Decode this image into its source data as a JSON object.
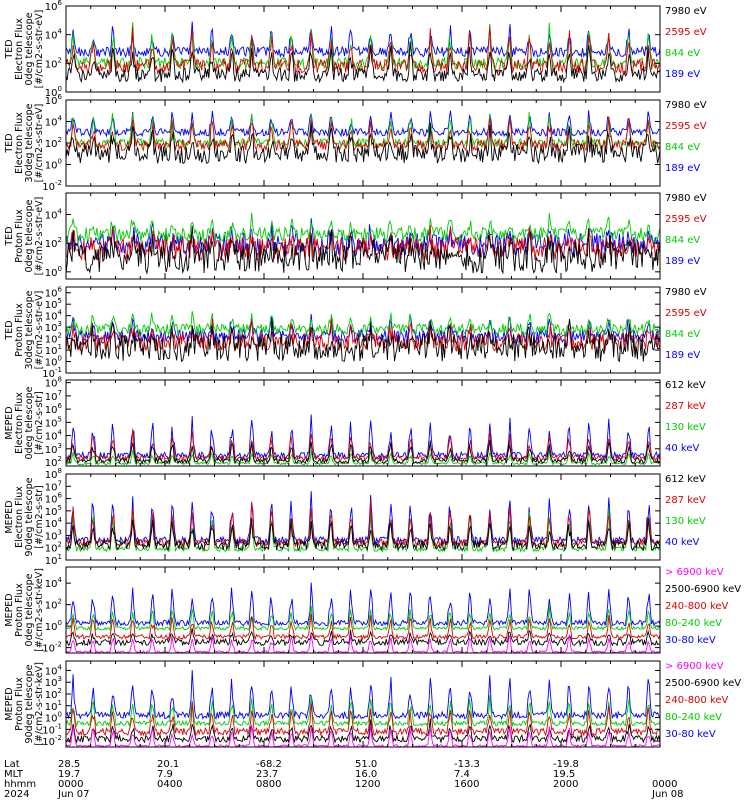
{
  "chart_data": [
    {
      "type": "line",
      "ylabel_lines": [
        "TED",
        "Electron Flux",
        "0deg telescope",
        "[#/cm2-s-str-eV]"
      ],
      "yticks": [
        "10^0",
        "10^2",
        "10^4",
        "10^6"
      ],
      "log_range": [
        0,
        6
      ],
      "series": [
        {
          "name": "7980 eV",
          "color": "#000000",
          "base": 1.2,
          "peak": 1.8,
          "noise": 0.5
        },
        {
          "name": "2595 eV",
          "color": "#dd0000",
          "base": 1.8,
          "peak": 2.0,
          "noise": 0.5
        },
        {
          "name": "844 eV",
          "color": "#00cc00",
          "base": 2.0,
          "peak": 2.2,
          "noise": 0.4
        },
        {
          "name": "189 eV",
          "color": "#0000ff",
          "base": 2.8,
          "peak": 1.6,
          "noise": 0.35
        }
      ]
    },
    {
      "type": "line",
      "ylabel_lines": [
        "TED",
        "Electron Flux",
        "30deg telescope",
        "[#/cm2-s-str-eV]"
      ],
      "yticks": [
        "10^-2",
        "10^0",
        "10^2",
        "10^4",
        "10^6"
      ],
      "log_range": [
        -2,
        6
      ],
      "series": [
        {
          "name": "7980 eV",
          "color": "#000000",
          "base": 1.0,
          "peak": 2.0,
          "noise": 0.9
        },
        {
          "name": "2595 eV",
          "color": "#dd0000",
          "base": 1.8,
          "peak": 2.2,
          "noise": 0.5
        },
        {
          "name": "844 eV",
          "color": "#00cc00",
          "base": 2.0,
          "peak": 2.6,
          "noise": 0.4
        },
        {
          "name": "189 eV",
          "color": "#0000ff",
          "base": 3.0,
          "peak": 1.8,
          "noise": 0.35
        }
      ]
    },
    {
      "type": "line",
      "ylabel_lines": [
        "TED",
        "Proton Flux",
        "0deg telescope",
        "[#/cm2-s-str-eV]"
      ],
      "yticks": [
        "10^0",
        "10^2",
        "10^4"
      ],
      "log_range": [
        -0.5,
        5.5
      ],
      "series": [
        {
          "name": "7980 eV",
          "color": "#000000",
          "base": 1.0,
          "peak": 1.0,
          "noise": 1.1
        },
        {
          "name": "2595 eV",
          "color": "#dd0000",
          "base": 1.6,
          "peak": 1.0,
          "noise": 0.8
        },
        {
          "name": "844 eV",
          "color": "#00cc00",
          "base": 2.6,
          "peak": 1.0,
          "noise": 0.5
        },
        {
          "name": "189 eV",
          "color": "#0000ff",
          "base": 1.9,
          "peak": 1.0,
          "noise": 0.8
        }
      ]
    },
    {
      "type": "line",
      "ylabel_lines": [
        "TED",
        "Proton Flux",
        "30deg telescope",
        "[#/cm2-s-str-eV]"
      ],
      "yticks": [
        "10^-1",
        "10^0",
        "10^1",
        "10^2",
        "10^3",
        "10^4",
        "10^5",
        "10^6"
      ],
      "log_range": [
        -1,
        6.5
      ],
      "series": [
        {
          "name": "7980 eV",
          "color": "#000000",
          "base": 1.2,
          "peak": 1.4,
          "noise": 1.2
        },
        {
          "name": "2595 eV",
          "color": "#dd0000",
          "base": 1.7,
          "peak": 1.4,
          "noise": 0.8
        },
        {
          "name": "844 eV",
          "color": "#00cc00",
          "base": 2.8,
          "peak": 1.2,
          "noise": 0.5
        },
        {
          "name": "189 eV",
          "color": "#0000ff",
          "base": 2.2,
          "peak": 1.4,
          "noise": 0.6
        }
      ]
    },
    {
      "type": "line",
      "ylabel_lines": [
        "MEPED",
        "Electron Flux",
        "0deg telescope",
        "[#/cm2-s-str]"
      ],
      "yticks": [
        "10^2",
        "10^3",
        "10^4",
        "10^5",
        "10^6",
        "10^7",
        "10^8"
      ],
      "log_range": [
        1.7,
        8.2
      ],
      "series": [
        {
          "name": "612 keV",
          "color": "#000000",
          "base": 2.1,
          "peak": 1.4,
          "noise": 0.2
        },
        {
          "name": "287 keV",
          "color": "#dd0000",
          "base": 2.3,
          "peak": 1.8,
          "noise": 0.2
        },
        {
          "name": "130 keV",
          "color": "#00cc00",
          "base": 1.9,
          "peak": 0.8,
          "noise": 0.1
        },
        {
          "name": "40 keV",
          "color": "#0000ff",
          "base": 2.5,
          "peak": 2.6,
          "noise": 0.25
        }
      ]
    },
    {
      "type": "line",
      "ylabel_lines": [
        "MEPED",
        "Electron Flux",
        "90deg telescope",
        "[#/cm2-s-str]"
      ],
      "yticks": [
        "10^1",
        "10^2",
        "10^3",
        "10^4",
        "10^5",
        "10^6",
        "10^7",
        "10^8"
      ],
      "log_range": [
        1,
        8
      ],
      "series": [
        {
          "name": "612 keV",
          "color": "#000000",
          "base": 2.2,
          "peak": 2.0,
          "noise": 0.4
        },
        {
          "name": "287 keV",
          "color": "#dd0000",
          "base": 2.4,
          "peak": 2.8,
          "noise": 0.3
        },
        {
          "name": "130 keV",
          "color": "#00cc00",
          "base": 1.9,
          "peak": 2.8,
          "noise": 0.2
        },
        {
          "name": "40 keV",
          "color": "#0000ff",
          "base": 2.6,
          "peak": 3.4,
          "noise": 0.3
        }
      ]
    },
    {
      "type": "line",
      "ylabel_lines": [
        "MEPED",
        "Proton Flux",
        "0deg telescope",
        "[#/cm2-s-str-keV]"
      ],
      "yticks": [
        "10^-2",
        "10^0",
        "10^2",
        "10^4"
      ],
      "log_range": [
        -2.5,
        5.5
      ],
      "series": [
        {
          "name": "> 6900 keV",
          "color": "#ff00ff",
          "base": -2.4,
          "peak": 1.5,
          "noise": 0.1
        },
        {
          "name": "2500-6900 keV",
          "color": "#000000",
          "base": -1.5,
          "peak": 1.0,
          "noise": 0.3
        },
        {
          "name": "240-800 keV",
          "color": "#dd0000",
          "base": -1.0,
          "peak": 1.8,
          "noise": 0.2
        },
        {
          "name": "80-240 keV",
          "color": "#00cc00",
          "base": -0.2,
          "peak": 1.8,
          "noise": 0.15
        },
        {
          "name": "30-80 keV",
          "color": "#0000ff",
          "base": 0.3,
          "peak": 3.2,
          "noise": 0.25
        }
      ]
    },
    {
      "type": "line",
      "ylabel_lines": [
        "MEPED",
        "Proton Flux",
        "90deg telescope",
        "[#/cm2-s-str-keV]"
      ],
      "yticks": [
        "10^-2",
        "10^-1",
        "10^0",
        "10^1",
        "10^2",
        "10^3",
        "10^4"
      ],
      "log_range": [
        -2.5,
        4.8
      ],
      "series": [
        {
          "name": "> 6900 keV",
          "color": "#ff00ff",
          "base": -2.4,
          "peak": 1.5,
          "noise": 0.1
        },
        {
          "name": "2500-6900 keV",
          "color": "#000000",
          "base": -1.8,
          "peak": 1.3,
          "noise": 0.3
        },
        {
          "name": "240-800 keV",
          "color": "#dd0000",
          "base": -1.2,
          "peak": 2.0,
          "noise": 0.3
        },
        {
          "name": "80-240 keV",
          "color": "#00cc00",
          "base": -0.5,
          "peak": 2.0,
          "noise": 0.2
        },
        {
          "name": "30-80 keV",
          "color": "#0000ff",
          "base": 0.2,
          "peak": 3.0,
          "noise": 0.3
        }
      ]
    }
  ],
  "x_axis": {
    "row_labels": [
      "Lat",
      "MLT",
      "hhmm",
      "2024"
    ],
    "columns": [
      {
        "lat": "28.5",
        "mlt": "19.7",
        "hhmm": "0000",
        "date": "Jun 07"
      },
      {
        "lat": "20.1",
        "mlt": "7.9",
        "hhmm": "0400",
        "date": ""
      },
      {
        "lat": "-68.2",
        "mlt": "23.7",
        "hhmm": "0800",
        "date": ""
      },
      {
        "lat": "51.0",
        "mlt": "16.0",
        "hhmm": "1200",
        "date": ""
      },
      {
        "lat": "-13.3",
        "mlt": "7.4",
        "hhmm": "1600",
        "date": ""
      },
      {
        "lat": "-19.8",
        "mlt": "19.5",
        "hhmm": "2000",
        "date": ""
      },
      {
        "lat": "",
        "mlt": "",
        "hhmm": "0000",
        "date": "Jun 08"
      }
    ],
    "orbits": 15
  }
}
